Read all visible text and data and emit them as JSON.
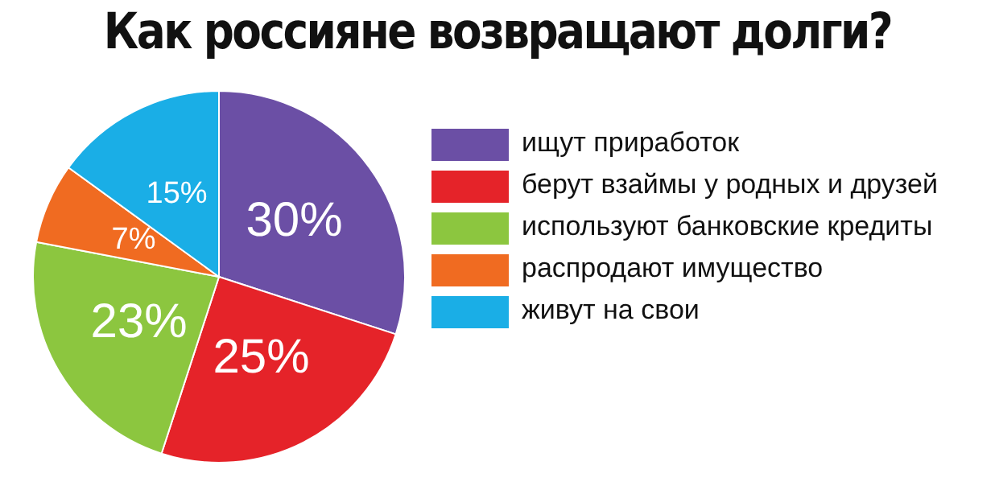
{
  "chart_data": {
    "type": "pie",
    "title": "Как россияне возвращают долги?",
    "categories": [
      "ищут приработок",
      "берут взаймы у родных и друзей",
      "используют банковские кредиты",
      "распродают имущество",
      "живут на свои"
    ],
    "values": [
      30,
      25,
      23,
      7,
      15
    ],
    "value_labels": [
      "30%",
      "25%",
      "23%",
      "7%",
      "15%"
    ],
    "colors": [
      "#6b4fa5",
      "#e52329",
      "#8cc63f",
      "#f06b21",
      "#1aaee6"
    ],
    "legend": "right"
  }
}
